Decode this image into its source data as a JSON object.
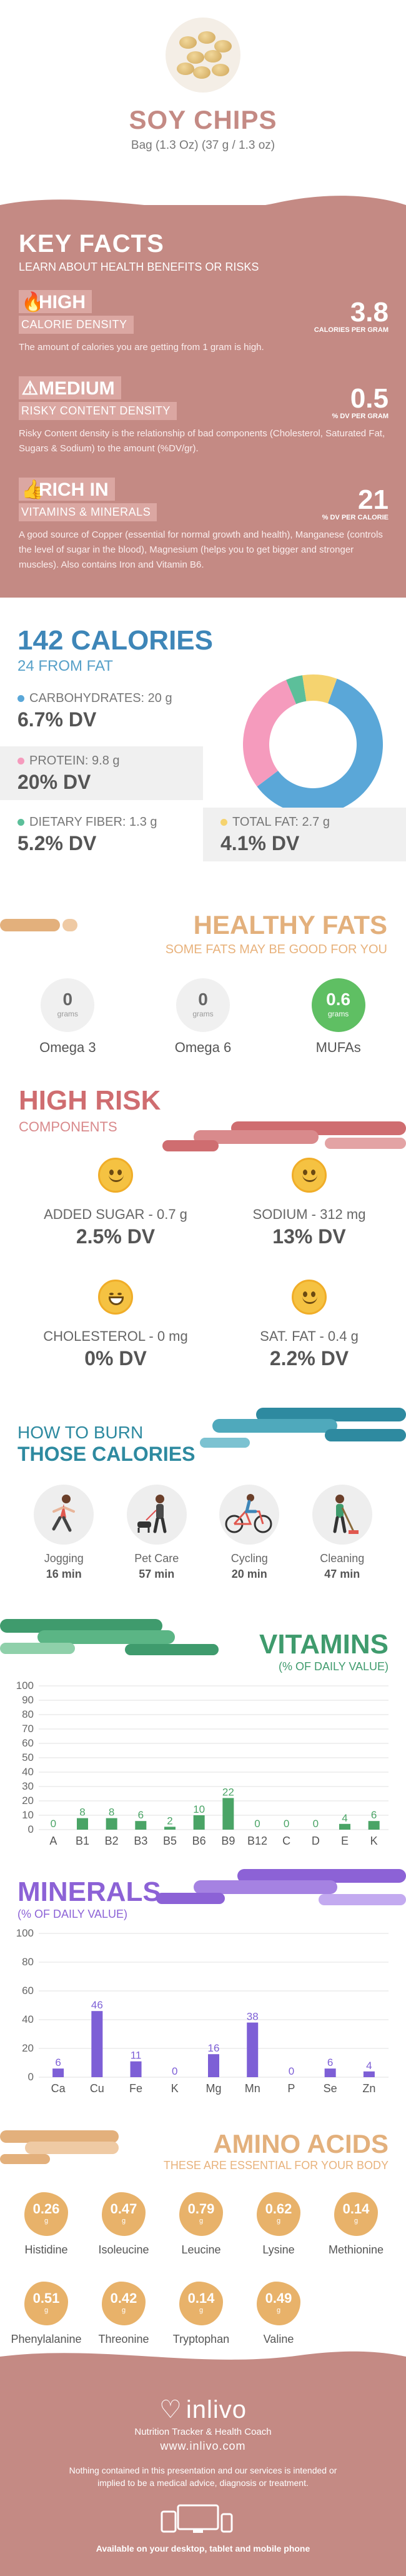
{
  "header": {
    "title": "SOY CHIPS",
    "subtitle": "Bag (1.3 Oz) (37 g / 1.3 oz)"
  },
  "key_facts": {
    "title": "KEY FACTS",
    "subtitle": "LEARN ABOUT HEALTH BENEFITS OR RISKS",
    "calorie_density": {
      "level": "HIGH",
      "tag": "CALORIE DENSITY",
      "value": "3.8",
      "unit": "CALORIES PER GRAM",
      "description": "The amount of calories you are getting from 1 gram is high."
    },
    "risky_content": {
      "level": "MEDIUM",
      "tag": "RISKY CONTENT DENSITY",
      "value": "0.5",
      "unit": "% DV PER GRAM",
      "description": "Risky Content density is the relationship of bad components (Cholesterol, Saturated Fat, Sugars & Sodium) to the amount (%DV/gr)."
    },
    "vitamins_minerals": {
      "level": "RICH  IN",
      "tag": "VITAMINS & MINERALS",
      "value": "21",
      "unit": "% DV PER CALORIE",
      "description": "A good source of Copper (essential for normal growth and health), Manganese (controls the level of sugar in the blood), Magnesium (helps you to get bigger and stronger muscles). Also contains Iron and Vitamin B6."
    }
  },
  "calories": {
    "title": "142 CALORIES",
    "from_fat": "24 FROM FAT",
    "carbs": {
      "label": "CARBOHYDRATES: 20 g",
      "dv": "6.7% DV",
      "color": "#5aa7d8"
    },
    "protein": {
      "label": "PROTEIN: 9.8 g",
      "dv": "20% DV",
      "color": "#f59bbd"
    },
    "fiber": {
      "label": "DIETARY FIBER: 1.3 g",
      "dv": "5.2% DV",
      "color": "#5cbf9a"
    },
    "fat": {
      "label": "TOTAL FAT: 2.7 g",
      "dv": "4.1% DV",
      "color": "#f5d36f"
    },
    "donut": [
      {
        "name": "carbs",
        "value": 20,
        "color": "#5aa7d8"
      },
      {
        "name": "protein",
        "value": 9.8,
        "color": "#f59bbd"
      },
      {
        "name": "fiber",
        "value": 1.3,
        "color": "#5cbf9a"
      },
      {
        "name": "fat",
        "value": 2.7,
        "color": "#f5d36f"
      }
    ]
  },
  "healthy_fats": {
    "title": "HEALTHY FATS",
    "subtitle": "SOME FATS MAY BE GOOD FOR YOU",
    "items": [
      {
        "value": "0",
        "unit": "grams",
        "name": "Omega 3"
      },
      {
        "value": "0",
        "unit": "grams",
        "name": "Omega 6"
      },
      {
        "value": "0.6",
        "unit": "grams",
        "name": "MUFAs"
      }
    ]
  },
  "high_risk": {
    "title": "HIGH RISK",
    "subtitle": "COMPONENTS",
    "items": [
      {
        "name": "ADDED SUGAR - 0.7 g",
        "dv": "2.5% DV"
      },
      {
        "name": "SODIUM - 312 mg",
        "dv": "13% DV"
      },
      {
        "name": "CHOLESTEROL - 0 mg",
        "dv": "0% DV"
      },
      {
        "name": "SAT. FAT - 0.4 g",
        "dv": "2.2% DV"
      }
    ]
  },
  "burn": {
    "title_line1": "HOW TO BURN",
    "title_line2": "THOSE CALORIES",
    "items": [
      {
        "name": "Jogging",
        "time": "16 min",
        "icon": "jogging-icon"
      },
      {
        "name": "Pet Care",
        "time": "57 min",
        "icon": "dog-walking-icon"
      },
      {
        "name": "Cycling",
        "time": "20 min",
        "icon": "cycling-icon"
      },
      {
        "name": "Cleaning",
        "time": "47 min",
        "icon": "cleaning-icon"
      }
    ]
  },
  "vitamins": {
    "title": "VITAMINS",
    "subtitle": "(% OF DAILY VALUE)"
  },
  "minerals": {
    "title": "MINERALS",
    "subtitle": "(% OF DAILY VALUE)"
  },
  "chart_data": [
    {
      "type": "bar",
      "categories": [
        "A",
        "B1",
        "B2",
        "B3",
        "B5",
        "B6",
        "B9",
        "B12",
        "C",
        "D",
        "E",
        "K"
      ],
      "values": [
        0,
        8,
        8,
        6,
        2,
        10,
        22,
        0,
        0,
        0,
        4,
        6
      ],
      "ylim": [
        0,
        100
      ],
      "yticks": [
        0,
        10,
        20,
        30,
        40,
        50,
        60,
        70,
        80,
        90,
        100
      ],
      "color": "#4aa466"
    },
    {
      "type": "bar",
      "categories": [
        "Ca",
        "Cu",
        "Fe",
        "K",
        "Mg",
        "Mn",
        "P",
        "Se",
        "Zn"
      ],
      "values": [
        6,
        46,
        11,
        0,
        16,
        38,
        0,
        6,
        4
      ],
      "ylim": [
        0,
        100
      ],
      "yticks": [
        0,
        20,
        40,
        60,
        80,
        100
      ],
      "color": "#7d5fd6"
    }
  ],
  "amino_acids": {
    "title": "AMINO ACIDS",
    "subtitle": "THESE ARE ESSENTIAL FOR YOUR BODY",
    "row1": [
      {
        "value": "0.26",
        "unit": "g",
        "name": "Histidine"
      },
      {
        "value": "0.47",
        "unit": "g",
        "name": "Isoleucine"
      },
      {
        "value": "0.79",
        "unit": "g",
        "name": "Leucine"
      },
      {
        "value": "0.62",
        "unit": "g",
        "name": "Lysine"
      },
      {
        "value": "0.14",
        "unit": "g",
        "name": "Methionine"
      }
    ],
    "row2": [
      {
        "value": "0.51",
        "unit": "g",
        "name": "Phenylalanine"
      },
      {
        "value": "0.42",
        "unit": "g",
        "name": "Threonine"
      },
      {
        "value": "0.14",
        "unit": "g",
        "name": "Tryptophan"
      },
      {
        "value": "0.49",
        "unit": "g",
        "name": "Valine"
      }
    ]
  },
  "footer": {
    "brand": "inlivo",
    "tagline": "Nutrition Tracker & Health Coach",
    "url": "www.inlivo.com",
    "disclaimer": "Nothing contained in this presentation and our services is intended or implied to be a medical advice, diagnosis or treatment.",
    "available": "Available on your desktop, tablet and mobile phone"
  }
}
